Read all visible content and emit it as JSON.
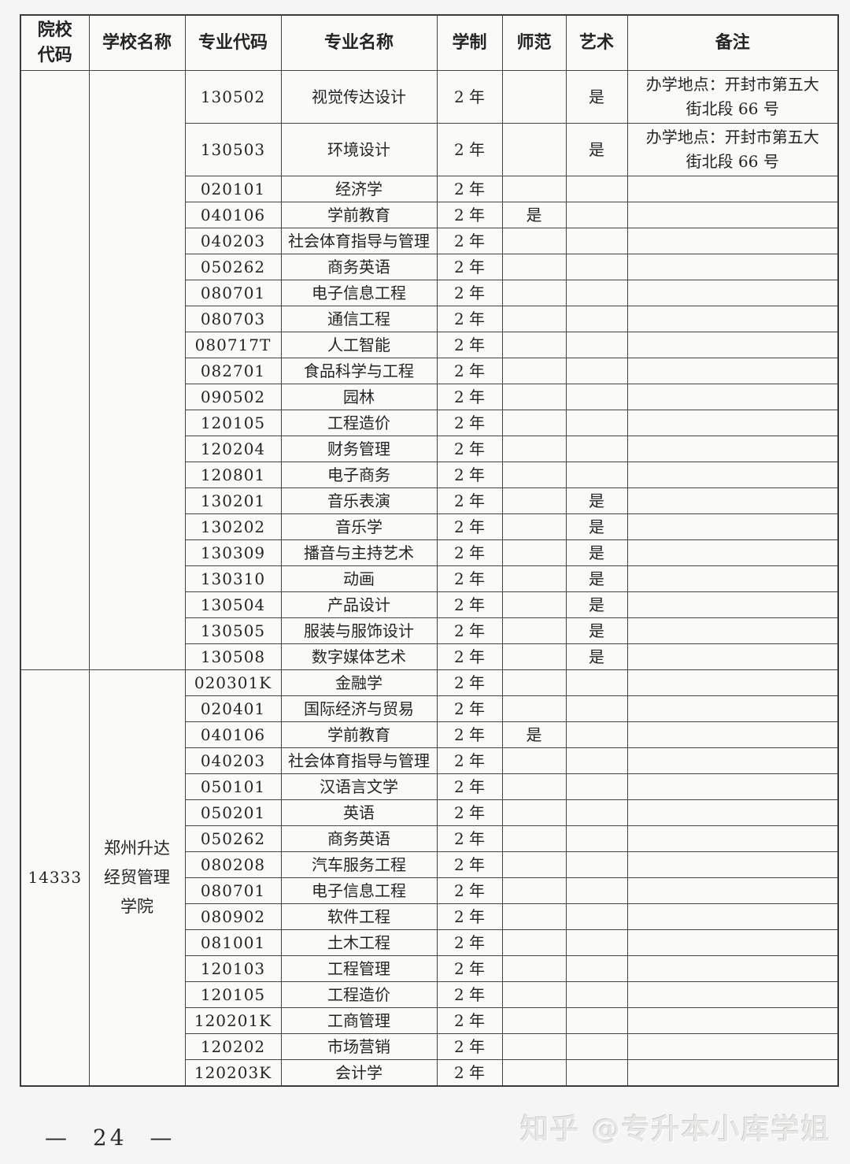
{
  "page": {
    "page_number": "— 24 —",
    "watermark": "知乎 @专升本小库学姐"
  },
  "table": {
    "headers": [
      "院校代码",
      "学校名称",
      "专业代码",
      "专业名称",
      "学制",
      "师范",
      "艺术",
      "备注"
    ],
    "groups": [
      {
        "college_code": "",
        "college_name": "",
        "rows": [
          {
            "major_code": "130502",
            "major_name": "视觉传达设计",
            "duration": "2 年",
            "normal": "",
            "art": "是",
            "remark": "办学地点：开封市第五大街北段 66 号"
          },
          {
            "major_code": "130503",
            "major_name": "环境设计",
            "duration": "2 年",
            "normal": "",
            "art": "是",
            "remark": "办学地点：开封市第五大街北段 66 号"
          },
          {
            "major_code": "020101",
            "major_name": "经济学",
            "duration": "2 年",
            "normal": "",
            "art": "",
            "remark": ""
          },
          {
            "major_code": "040106",
            "major_name": "学前教育",
            "duration": "2 年",
            "normal": "是",
            "art": "",
            "remark": ""
          },
          {
            "major_code": "040203",
            "major_name": "社会体育指导与管理",
            "duration": "2 年",
            "normal": "",
            "art": "",
            "remark": ""
          },
          {
            "major_code": "050262",
            "major_name": "商务英语",
            "duration": "2 年",
            "normal": "",
            "art": "",
            "remark": ""
          },
          {
            "major_code": "080701",
            "major_name": "电子信息工程",
            "duration": "2 年",
            "normal": "",
            "art": "",
            "remark": ""
          },
          {
            "major_code": "080703",
            "major_name": "通信工程",
            "duration": "2 年",
            "normal": "",
            "art": "",
            "remark": ""
          },
          {
            "major_code": "080717T",
            "major_name": "人工智能",
            "duration": "2 年",
            "normal": "",
            "art": "",
            "remark": ""
          },
          {
            "major_code": "082701",
            "major_name": "食品科学与工程",
            "duration": "2 年",
            "normal": "",
            "art": "",
            "remark": ""
          },
          {
            "major_code": "090502",
            "major_name": "园林",
            "duration": "2 年",
            "normal": "",
            "art": "",
            "remark": ""
          },
          {
            "major_code": "120105",
            "major_name": "工程造价",
            "duration": "2 年",
            "normal": "",
            "art": "",
            "remark": ""
          },
          {
            "major_code": "120204",
            "major_name": "财务管理",
            "duration": "2 年",
            "normal": "",
            "art": "",
            "remark": ""
          },
          {
            "major_code": "120801",
            "major_name": "电子商务",
            "duration": "2 年",
            "normal": "",
            "art": "",
            "remark": ""
          },
          {
            "major_code": "130201",
            "major_name": "音乐表演",
            "duration": "2 年",
            "normal": "",
            "art": "是",
            "remark": ""
          },
          {
            "major_code": "130202",
            "major_name": "音乐学",
            "duration": "2 年",
            "normal": "",
            "art": "是",
            "remark": ""
          },
          {
            "major_code": "130309",
            "major_name": "播音与主持艺术",
            "duration": "2 年",
            "normal": "",
            "art": "是",
            "remark": ""
          },
          {
            "major_code": "130310",
            "major_name": "动画",
            "duration": "2 年",
            "normal": "",
            "art": "是",
            "remark": ""
          },
          {
            "major_code": "130504",
            "major_name": "产品设计",
            "duration": "2 年",
            "normal": "",
            "art": "是",
            "remark": ""
          },
          {
            "major_code": "130505",
            "major_name": "服装与服饰设计",
            "duration": "2 年",
            "normal": "",
            "art": "是",
            "remark": ""
          },
          {
            "major_code": "130508",
            "major_name": "数字媒体艺术",
            "duration": "2 年",
            "normal": "",
            "art": "是",
            "remark": ""
          }
        ]
      },
      {
        "college_code": "14333",
        "college_name": "郑州升达经贸管理学院",
        "rows": [
          {
            "major_code": "020301K",
            "major_name": "金融学",
            "duration": "2 年",
            "normal": "",
            "art": "",
            "remark": ""
          },
          {
            "major_code": "020401",
            "major_name": "国际经济与贸易",
            "duration": "2 年",
            "normal": "",
            "art": "",
            "remark": ""
          },
          {
            "major_code": "040106",
            "major_name": "学前教育",
            "duration": "2 年",
            "normal": "是",
            "art": "",
            "remark": ""
          },
          {
            "major_code": "040203",
            "major_name": "社会体育指导与管理",
            "duration": "2 年",
            "normal": "",
            "art": "",
            "remark": ""
          },
          {
            "major_code": "050101",
            "major_name": "汉语言文学",
            "duration": "2 年",
            "normal": "",
            "art": "",
            "remark": ""
          },
          {
            "major_code": "050201",
            "major_name": "英语",
            "duration": "2 年",
            "normal": "",
            "art": "",
            "remark": ""
          },
          {
            "major_code": "050262",
            "major_name": "商务英语",
            "duration": "2 年",
            "normal": "",
            "art": "",
            "remark": ""
          },
          {
            "major_code": "080208",
            "major_name": "汽车服务工程",
            "duration": "2 年",
            "normal": "",
            "art": "",
            "remark": ""
          },
          {
            "major_code": "080701",
            "major_name": "电子信息工程",
            "duration": "2 年",
            "normal": "",
            "art": "",
            "remark": ""
          },
          {
            "major_code": "080902",
            "major_name": "软件工程",
            "duration": "2 年",
            "normal": "",
            "art": "",
            "remark": ""
          },
          {
            "major_code": "081001",
            "major_name": "土木工程",
            "duration": "2 年",
            "normal": "",
            "art": "",
            "remark": ""
          },
          {
            "major_code": "120103",
            "major_name": "工程管理",
            "duration": "2 年",
            "normal": "",
            "art": "",
            "remark": ""
          },
          {
            "major_code": "120105",
            "major_name": "工程造价",
            "duration": "2 年",
            "normal": "",
            "art": "",
            "remark": ""
          },
          {
            "major_code": "120201K",
            "major_name": "工商管理",
            "duration": "2 年",
            "normal": "",
            "art": "",
            "remark": ""
          },
          {
            "major_code": "120202",
            "major_name": "市场营销",
            "duration": "2 年",
            "normal": "",
            "art": "",
            "remark": ""
          },
          {
            "major_code": "120203K",
            "major_name": "会计学",
            "duration": "2 年",
            "normal": "",
            "art": "",
            "remark": ""
          }
        ]
      }
    ]
  }
}
